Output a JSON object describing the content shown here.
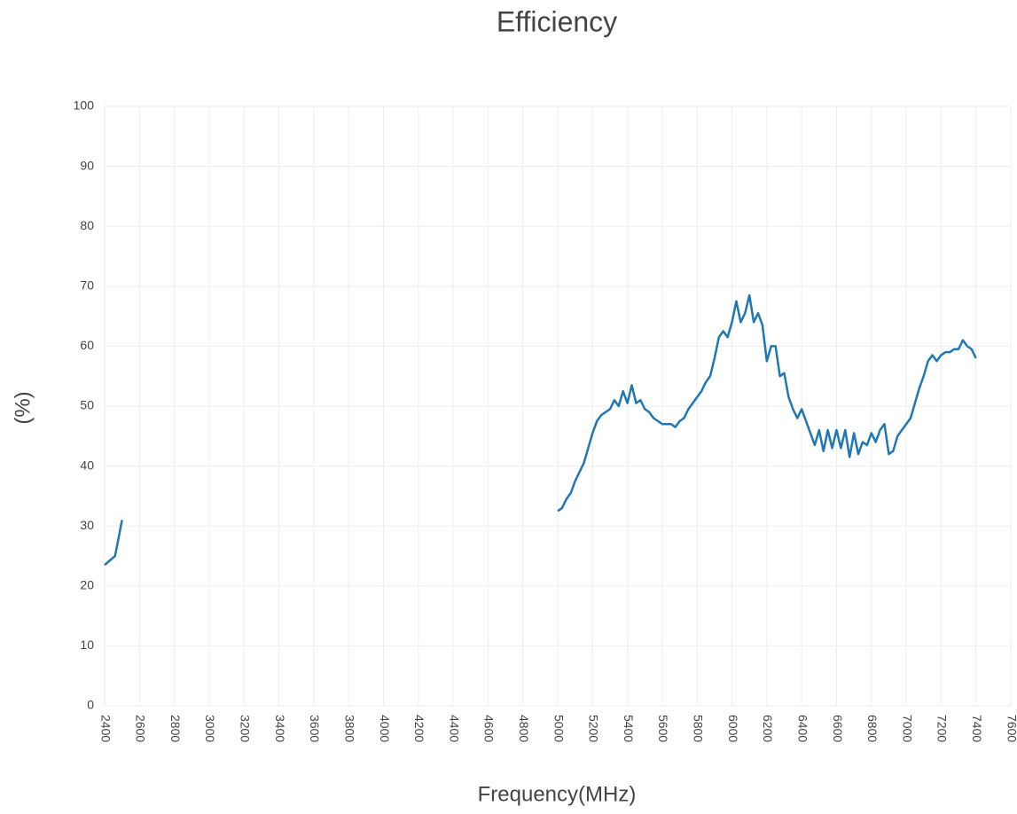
{
  "chart_data": {
    "type": "line",
    "title": "Efficiency",
    "x_label": "Frequency(MHz)",
    "y_label": "(%)",
    "x": [
      2400,
      2420,
      2440,
      2460,
      2480,
      2500,
      2750,
      5000,
      5025,
      5050,
      5075,
      5100,
      5125,
      5150,
      5175,
      5200,
      5225,
      5250,
      5275,
      5300,
      5325,
      5350,
      5375,
      5400,
      5425,
      5450,
      5475,
      5500,
      5525,
      5550,
      5575,
      5600,
      5625,
      5650,
      5675,
      5700,
      5725,
      5750,
      5775,
      5800,
      5825,
      5850,
      5875,
      5900,
      5925,
      5950,
      5975,
      6000,
      6025,
      6050,
      6075,
      6100,
      6125,
      6150,
      6175,
      6200,
      6225,
      6250,
      6275,
      6300,
      6325,
      6350,
      6375,
      6400,
      6425,
      6450,
      6475,
      6500,
      6525,
      6550,
      6575,
      6600,
      6625,
      6650,
      6675,
      6700,
      6725,
      6750,
      6775,
      6800,
      6825,
      6850,
      6875,
      6900,
      6925,
      6950,
      6975,
      7000,
      7025,
      7050,
      7075,
      7100,
      7125,
      7150,
      7175,
      7200,
      7225,
      7250,
      7275,
      7300,
      7325,
      7350,
      7375,
      7400
    ],
    "series": [
      {
        "name": "Efficiency",
        "color": "#1f77b4",
        "values": [
          23.5,
          24,
          24.5,
          25,
          28,
          31,
          null,
          32.5,
          33,
          34.5,
          35.5,
          37.5,
          39,
          40.5,
          43,
          45.5,
          47.5,
          48.5,
          49,
          49.5,
          51,
          50,
          52.5,
          50.5,
          53.5,
          50.5,
          51,
          49.5,
          49,
          48,
          47.5,
          47,
          47,
          47,
          46.5,
          47.5,
          48,
          49.5,
          50.5,
          51.5,
          52.5,
          54,
          55,
          58,
          61.5,
          62.5,
          61.5,
          64,
          67.5,
          64,
          65.5,
          68.5,
          64,
          65.5,
          63.5,
          57.5,
          60,
          60,
          55,
          55.5,
          51.5,
          49.5,
          48,
          49.5,
          47.5,
          45.5,
          43.5,
          46,
          42.5,
          46,
          43,
          46,
          43,
          46,
          41.5,
          45.5,
          42,
          44,
          43.5,
          45.5,
          44,
          46,
          47,
          42,
          42.5,
          45,
          46,
          47,
          48,
          50.5,
          53,
          55,
          57.5,
          58.5,
          57.5,
          58.5,
          59,
          59,
          59.5,
          59.5,
          61,
          60,
          59.5,
          58
        ]
      }
    ],
    "xlim": [
      2400,
      7600
    ],
    "ylim": [
      0,
      100
    ],
    "xticks": [
      2400,
      2600,
      2800,
      3000,
      3200,
      3400,
      3600,
      3800,
      4000,
      4200,
      4400,
      4600,
      4800,
      5000,
      5200,
      5400,
      5600,
      5800,
      6000,
      6200,
      6400,
      6600,
      6800,
      7000,
      7200,
      7400,
      7600
    ],
    "yticks": [
      0,
      10,
      20,
      30,
      40,
      50,
      60,
      70,
      80,
      90,
      100
    ],
    "grid": true
  }
}
